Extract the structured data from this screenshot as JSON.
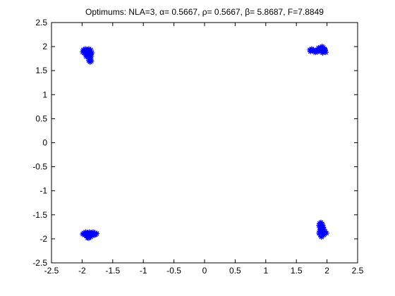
{
  "chart_data": {
    "type": "scatter",
    "title": "Optimums: NLA=3, α= 0.5667, ρ= 0.5667, β= 5.8687, F=7.8849",
    "xlabel": "",
    "ylabel": "",
    "xlim": [
      -2.5,
      2.5
    ],
    "ylim": [
      -2.5,
      2.5
    ],
    "xticks": [
      -2.5,
      -2,
      -1.5,
      -1,
      -0.5,
      0,
      0.5,
      1,
      1.5,
      2,
      2.5
    ],
    "yticks": [
      -2.5,
      -2,
      -1.5,
      -1,
      -0.5,
      0,
      0.5,
      1,
      1.5,
      2,
      2.5
    ],
    "xtick_labels": [
      "-2.5",
      "-2",
      "-1.5",
      "-1",
      "-0.5",
      "0",
      "0.5",
      "1",
      "1.5",
      "2",
      "2.5"
    ],
    "ytick_labels": [
      "-2.5",
      "-2",
      "-1.5",
      "-1",
      "-0.5",
      "0",
      "0.5",
      "1",
      "1.5",
      "2",
      "2.5"
    ],
    "grid": false,
    "marker": "asterisk",
    "marker_color": "#0000ff",
    "series": [
      {
        "points": [
          [
            -1.98,
            1.93
          ],
          [
            -1.95,
            1.95
          ],
          [
            -1.92,
            1.94
          ],
          [
            -1.89,
            1.95
          ],
          [
            -1.86,
            1.93
          ],
          [
            -1.99,
            1.89
          ],
          [
            -1.96,
            1.9
          ],
          [
            -1.93,
            1.9
          ],
          [
            -1.9,
            1.91
          ],
          [
            -1.87,
            1.89
          ],
          [
            -1.95,
            1.86
          ],
          [
            -1.92,
            1.86
          ],
          [
            -1.89,
            1.85
          ],
          [
            -1.86,
            1.85
          ],
          [
            -1.84,
            1.87
          ],
          [
            -1.94,
            1.82
          ],
          [
            -1.91,
            1.82
          ],
          [
            -1.88,
            1.81
          ],
          [
            -1.85,
            1.8
          ],
          [
            -1.9,
            1.78
          ],
          [
            -1.88,
            1.75
          ],
          [
            -1.86,
            1.73
          ],
          [
            -1.89,
            1.71
          ],
          [
            -1.87,
            1.68
          ],
          [
            -1.85,
            1.7
          ],
          [
            -1.93,
            1.79
          ],
          [
            -1.97,
            1.87
          ],
          [
            -1.91,
            1.88
          ]
        ]
      },
      {
        "points": [
          [
            1.72,
            1.93
          ],
          [
            1.75,
            1.95
          ],
          [
            1.78,
            1.93
          ],
          [
            1.73,
            1.9
          ],
          [
            1.76,
            1.91
          ],
          [
            1.79,
            1.9
          ],
          [
            1.82,
            1.92
          ],
          [
            1.85,
            1.93
          ],
          [
            1.88,
            1.95
          ],
          [
            1.9,
            1.98
          ],
          [
            1.92,
            2.0
          ],
          [
            1.94,
            1.98
          ],
          [
            1.96,
            1.95
          ],
          [
            1.93,
            1.94
          ],
          [
            1.87,
            1.91
          ],
          [
            1.9,
            1.9
          ],
          [
            1.84,
            1.89
          ],
          [
            1.81,
            1.88
          ],
          [
            1.95,
            1.9
          ],
          [
            1.98,
            1.88
          ],
          [
            1.93,
            1.87
          ],
          [
            1.89,
            1.96
          ],
          [
            1.86,
            1.97
          ],
          [
            1.97,
            1.93
          ]
        ]
      },
      {
        "points": [
          [
            -1.97,
            -1.88
          ],
          [
            -1.94,
            -1.86
          ],
          [
            -1.91,
            -1.87
          ],
          [
            -1.88,
            -1.86
          ],
          [
            -1.85,
            -1.87
          ],
          [
            -1.82,
            -1.86
          ],
          [
            -1.79,
            -1.88
          ],
          [
            -1.76,
            -1.89
          ],
          [
            -1.95,
            -1.91
          ],
          [
            -1.92,
            -1.9
          ],
          [
            -1.89,
            -1.91
          ],
          [
            -1.86,
            -1.9
          ],
          [
            -1.83,
            -1.91
          ],
          [
            -1.8,
            -1.92
          ],
          [
            -1.93,
            -1.94
          ],
          [
            -1.9,
            -1.95
          ],
          [
            -1.87,
            -1.94
          ],
          [
            -1.84,
            -1.93
          ],
          [
            -1.89,
            -1.98
          ],
          [
            -1.91,
            -1.98
          ],
          [
            -1.86,
            -1.96
          ],
          [
            -1.96,
            -1.92
          ],
          [
            -1.78,
            -1.91
          ],
          [
            -1.99,
            -1.9
          ]
        ]
      },
      {
        "points": [
          [
            1.88,
            -1.68
          ],
          [
            1.9,
            -1.66
          ],
          [
            1.92,
            -1.69
          ],
          [
            1.87,
            -1.72
          ],
          [
            1.9,
            -1.73
          ],
          [
            1.93,
            -1.72
          ],
          [
            1.88,
            -1.76
          ],
          [
            1.91,
            -1.77
          ],
          [
            1.94,
            -1.76
          ],
          [
            1.89,
            -1.8
          ],
          [
            1.92,
            -1.81
          ],
          [
            1.95,
            -1.8
          ],
          [
            1.88,
            -1.84
          ],
          [
            1.91,
            -1.85
          ],
          [
            1.94,
            -1.84
          ],
          [
            1.97,
            -1.85
          ],
          [
            1.87,
            -1.88
          ],
          [
            1.9,
            -1.89
          ],
          [
            1.93,
            -1.88
          ],
          [
            1.96,
            -1.87
          ],
          [
            1.99,
            -1.88
          ],
          [
            1.89,
            -1.92
          ],
          [
            1.92,
            -1.93
          ],
          [
            1.95,
            -1.92
          ],
          [
            1.91,
            -1.96
          ]
        ]
      }
    ]
  }
}
